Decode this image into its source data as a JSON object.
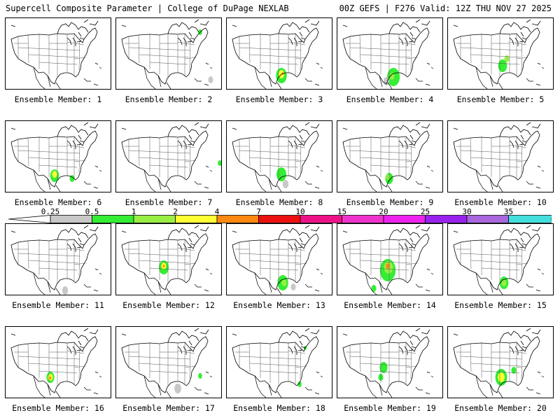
{
  "header": {
    "left": "Supercell Composite Parameter | College of DuPage NEXLAB",
    "right": "00Z GEFS | F276 Valid: 12Z THU NOV 27 2025"
  },
  "colorbar": {
    "labels": [
      "0.25",
      "0.5",
      "1",
      "2",
      "4",
      "7",
      "10",
      "15",
      "20",
      "25",
      "30",
      "35"
    ],
    "colors": [
      "#c8c8c8",
      "#33ee33",
      "#99ee44",
      "#ffff33",
      "#ff8811",
      "#ee1111",
      "#ee1188",
      "#ee33cc",
      "#ee22ee",
      "#9922ee",
      "#aa66dd",
      "#44dddd"
    ]
  },
  "panels": [
    {
      "caption": "Ensemble Member: 1",
      "blobs": []
    },
    {
      "caption": "Ensemble Member: 2",
      "blobs": [
        {
          "x": 120,
          "y": 20,
          "r": 4,
          "l": 1
        },
        {
          "x": 135,
          "y": 88,
          "r": 5,
          "l": 0
        }
      ]
    },
    {
      "caption": "Ensemble Member: 3",
      "blobs": [
        {
          "x": 78,
          "y": 82,
          "r": 11,
          "l": 1
        },
        {
          "x": 78,
          "y": 80,
          "r": 6,
          "l": 3
        },
        {
          "x": 80,
          "y": 79,
          "r": 2,
          "l": 4
        }
      ]
    },
    {
      "caption": "Ensemble Member: 4",
      "blobs": [
        {
          "x": 80,
          "y": 84,
          "r": 13,
          "l": 1
        },
        {
          "x": 78,
          "y": 83,
          "r": 5,
          "l": 2
        },
        {
          "x": 70,
          "y": 90,
          "r": 6,
          "l": 0
        }
      ]
    },
    {
      "caption": "Ensemble Member: 5",
      "blobs": [
        {
          "x": 78,
          "y": 68,
          "r": 9,
          "l": 1
        },
        {
          "x": 84,
          "y": 58,
          "r": 5,
          "l": 2
        }
      ]
    },
    {
      "caption": "Ensemble Member: 6",
      "blobs": [
        {
          "x": 70,
          "y": 78,
          "r": 9,
          "l": 1
        },
        {
          "x": 70,
          "y": 76,
          "r": 5,
          "l": 3
        },
        {
          "x": 95,
          "y": 82,
          "r": 5,
          "l": 1
        }
      ]
    },
    {
      "caption": "Ensemble Member: 7",
      "blobs": [
        {
          "x": 148,
          "y": 60,
          "r": 4,
          "l": 1
        }
      ]
    },
    {
      "caption": "Ensemble Member: 8",
      "blobs": [
        {
          "x": 78,
          "y": 76,
          "r": 10,
          "l": 1
        },
        {
          "x": 84,
          "y": 90,
          "r": 6,
          "l": 0
        }
      ]
    },
    {
      "caption": "Ensemble Member: 9",
      "blobs": [
        {
          "x": 74,
          "y": 82,
          "r": 8,
          "l": 1
        },
        {
          "x": 72,
          "y": 80,
          "r": 4,
          "l": 2
        }
      ]
    },
    {
      "caption": "Ensemble Member: 10",
      "blobs": []
    },
    {
      "caption": "Ensemble Member: 11",
      "blobs": [
        {
          "x": 85,
          "y": 95,
          "r": 6,
          "l": 0
        }
      ]
    },
    {
      "caption": "Ensemble Member: 12",
      "blobs": [
        {
          "x": 68,
          "y": 62,
          "r": 10,
          "l": 1
        },
        {
          "x": 68,
          "y": 60,
          "r": 5,
          "l": 3
        },
        {
          "x": 68,
          "y": 60,
          "r": 2,
          "l": 4
        }
      ]
    },
    {
      "caption": "Ensemble Member: 13",
      "blobs": [
        {
          "x": 80,
          "y": 84,
          "r": 11,
          "l": 1
        },
        {
          "x": 82,
          "y": 84,
          "r": 5,
          "l": 2
        },
        {
          "x": 95,
          "y": 90,
          "r": 5,
          "l": 0
        }
      ]
    },
    {
      "caption": "Ensemble Member: 14",
      "blobs": [
        {
          "x": 72,
          "y": 66,
          "r": 16,
          "l": 1
        },
        {
          "x": 73,
          "y": 62,
          "r": 9,
          "l": 2
        },
        {
          "x": 72,
          "y": 60,
          "r": 4,
          "l": 4
        },
        {
          "x": 52,
          "y": 92,
          "r": 5,
          "l": 1
        }
      ]
    },
    {
      "caption": "Ensemble Member: 15",
      "blobs": [
        {
          "x": 80,
          "y": 84,
          "r": 9,
          "l": 1
        },
        {
          "x": 80,
          "y": 84,
          "r": 5,
          "l": 2
        }
      ]
    },
    {
      "caption": "Ensemble Member: 16",
      "blobs": [
        {
          "x": 64,
          "y": 72,
          "r": 8,
          "l": 1
        },
        {
          "x": 64,
          "y": 72,
          "r": 5,
          "l": 3
        },
        {
          "x": 64,
          "y": 73,
          "r": 2,
          "l": 4
        }
      ]
    },
    {
      "caption": "Ensemble Member: 17",
      "blobs": [
        {
          "x": 88,
          "y": 88,
          "r": 7,
          "l": 0
        },
        {
          "x": 120,
          "y": 70,
          "r": 4,
          "l": 1
        }
      ]
    },
    {
      "caption": "Ensemble Member: 18",
      "blobs": [
        {
          "x": 112,
          "y": 30,
          "r": 3,
          "l": 1
        },
        {
          "x": 104,
          "y": 82,
          "r": 4,
          "l": 1
        }
      ]
    },
    {
      "caption": "Ensemble Member: 19",
      "blobs": [
        {
          "x": 66,
          "y": 58,
          "r": 8,
          "l": 1
        },
        {
          "x": 62,
          "y": 72,
          "r": 5,
          "l": 1
        }
      ]
    },
    {
      "caption": "Ensemble Member: 20",
      "blobs": [
        {
          "x": 76,
          "y": 72,
          "r": 12,
          "l": 1
        },
        {
          "x": 76,
          "y": 72,
          "r": 7,
          "l": 3
        },
        {
          "x": 94,
          "y": 62,
          "r": 5,
          "l": 1
        }
      ]
    }
  ]
}
